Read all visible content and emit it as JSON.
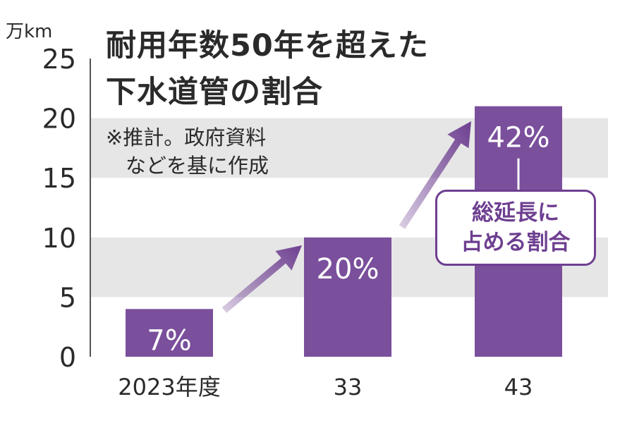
{
  "chart_data": {
    "type": "bar",
    "title_lines": [
      "耐用年数50年を超えた",
      "下水道管の割合"
    ],
    "note_lines": [
      "※推計。政府資料",
      "などを基に作成"
    ],
    "y_unit": "万km",
    "categories": [
      "2023年度",
      "33",
      "43"
    ],
    "values": [
      4,
      10,
      21
    ],
    "value_labels": [
      "7%",
      "20%",
      "42%"
    ],
    "yticks": [
      0,
      5,
      10,
      15,
      20,
      25
    ],
    "ylim": [
      0,
      25
    ],
    "annotation_lines": [
      "総延長に",
      "占める割合"
    ],
    "grid": "alternating horizontal bands",
    "colors": {
      "bar": "#7a4f9c",
      "band": "#e6e6e6",
      "arrow": "#6e3f91",
      "text": "#2a2a2a"
    }
  }
}
